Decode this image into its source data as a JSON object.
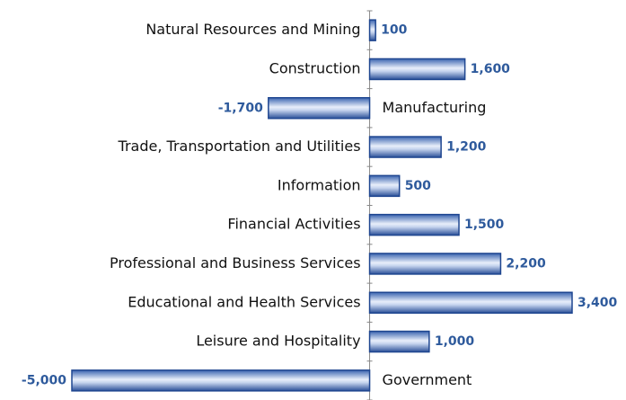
{
  "chart_data": {
    "type": "bar",
    "orientation": "horizontal",
    "categories": [
      "Natural Resources and Mining",
      "Construction",
      "Manufacturing",
      "Trade, Transportation and Utilities",
      "Information",
      "Financial Activities",
      "Professional and Business Services",
      "Educational and Health Services",
      "Leisure and Hospitality",
      "Government"
    ],
    "values": [
      100,
      1600,
      -1700,
      1200,
      500,
      1500,
      2200,
      3400,
      1000,
      -5000
    ],
    "value_labels": [
      "100",
      "1,600",
      "-1,700",
      "1,200",
      "500",
      "1,500",
      "2,200",
      "3,400",
      "1,000",
      "-5,000"
    ],
    "color": "#1f4690",
    "xlim": [
      -5000,
      3400
    ]
  }
}
